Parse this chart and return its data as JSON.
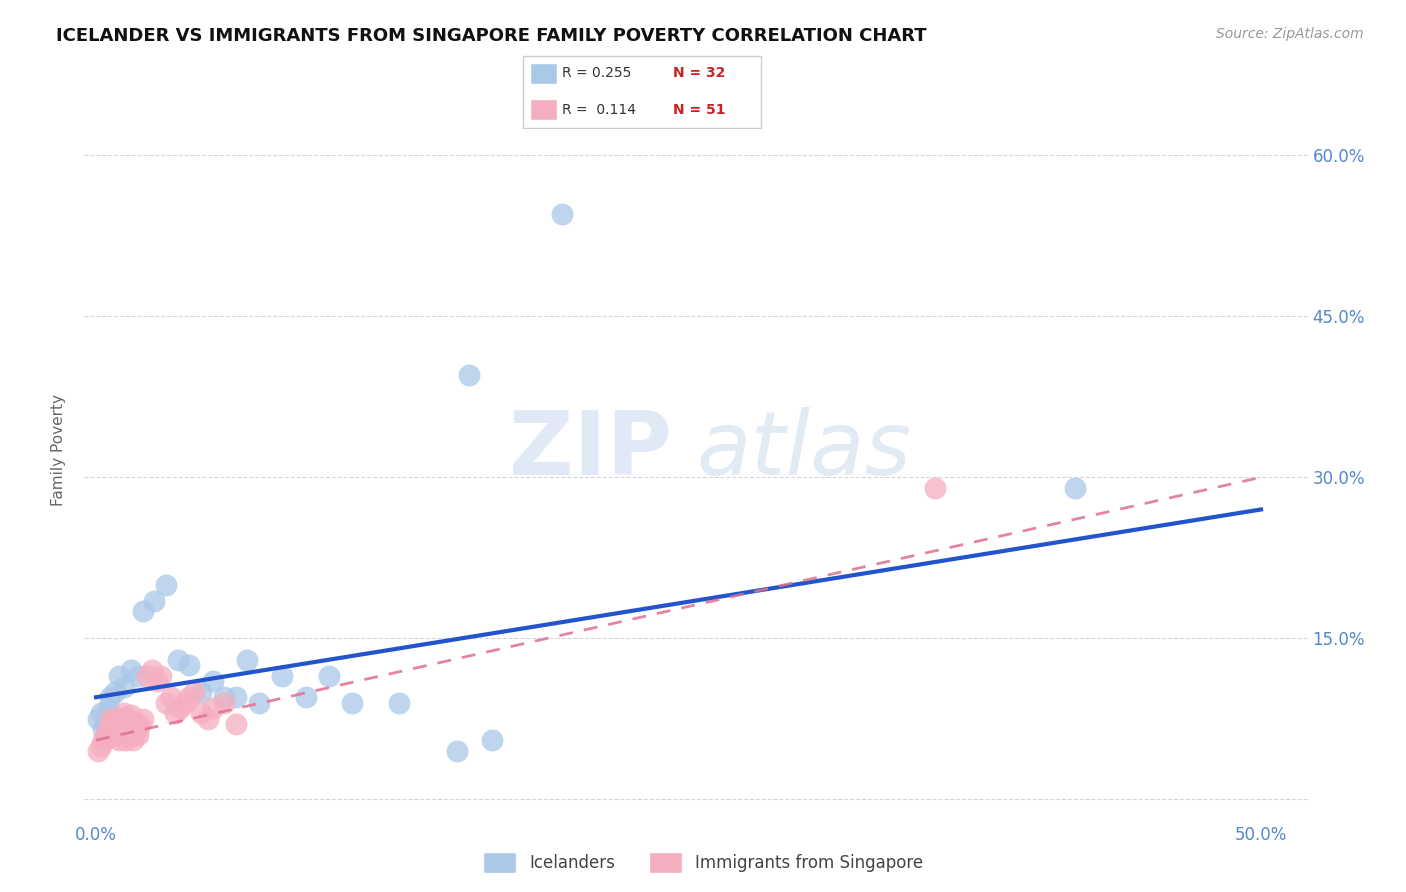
{
  "title": "ICELANDER VS IMMIGRANTS FROM SINGAPORE FAMILY POVERTY CORRELATION CHART",
  "source": "Source: ZipAtlas.com",
  "ylabel": "Family Poverty",
  "xlim": [
    -0.005,
    0.52
  ],
  "ylim": [
    -0.02,
    0.67
  ],
  "xticks": [
    0.0,
    0.1,
    0.2,
    0.3,
    0.4,
    0.5
  ],
  "yticks": [
    0.0,
    0.15,
    0.3,
    0.45,
    0.6
  ],
  "xticklabels": [
    "0.0%",
    "",
    "",
    "",
    "",
    "50.0%"
  ],
  "yticklabels_right": [
    "",
    "15.0%",
    "30.0%",
    "45.0%",
    "60.0%"
  ],
  "color_blue": "#aac8e8",
  "color_pink": "#f5aec0",
  "color_blue_line": "#2255cc",
  "color_pink_line": "#e07090",
  "color_tick_label": "#5588cc",
  "icelanders_x": [
    0.001,
    0.002,
    0.003,
    0.004,
    0.005,
    0.006,
    0.008,
    0.01,
    0.012,
    0.015,
    0.018,
    0.02,
    0.025,
    0.03,
    0.035,
    0.04,
    0.045,
    0.05,
    0.055,
    0.06,
    0.065,
    0.07,
    0.08,
    0.09,
    0.1,
    0.11,
    0.13,
    0.155,
    0.17,
    0.2,
    0.42,
    0.16
  ],
  "icelanders_y": [
    0.075,
    0.08,
    0.065,
    0.07,
    0.085,
    0.095,
    0.1,
    0.115,
    0.105,
    0.12,
    0.115,
    0.175,
    0.185,
    0.2,
    0.13,
    0.125,
    0.1,
    0.11,
    0.095,
    0.095,
    0.13,
    0.09,
    0.115,
    0.095,
    0.115,
    0.09,
    0.09,
    0.045,
    0.055,
    0.545,
    0.29,
    0.395
  ],
  "singapore_x": [
    0.001,
    0.002,
    0.003,
    0.004,
    0.005,
    0.005,
    0.006,
    0.006,
    0.007,
    0.007,
    0.008,
    0.008,
    0.009,
    0.009,
    0.01,
    0.01,
    0.011,
    0.011,
    0.012,
    0.012,
    0.013,
    0.013,
    0.014,
    0.014,
    0.015,
    0.015,
    0.016,
    0.016,
    0.017,
    0.017,
    0.018,
    0.018,
    0.019,
    0.02,
    0.022,
    0.024,
    0.026,
    0.028,
    0.03,
    0.032,
    0.034,
    0.036,
    0.038,
    0.04,
    0.042,
    0.045,
    0.048,
    0.05,
    0.055,
    0.06,
    0.36
  ],
  "singapore_y": [
    0.045,
    0.05,
    0.055,
    0.058,
    0.06,
    0.065,
    0.07,
    0.075,
    0.058,
    0.062,
    0.065,
    0.07,
    0.072,
    0.076,
    0.055,
    0.065,
    0.068,
    0.072,
    0.076,
    0.08,
    0.055,
    0.06,
    0.065,
    0.068,
    0.072,
    0.078,
    0.055,
    0.06,
    0.065,
    0.07,
    0.06,
    0.065,
    0.07,
    0.075,
    0.115,
    0.12,
    0.11,
    0.115,
    0.09,
    0.095,
    0.08,
    0.085,
    0.09,
    0.095,
    0.1,
    0.08,
    0.075,
    0.085,
    0.09,
    0.07,
    0.29
  ],
  "blue_line_x": [
    0.0,
    0.5
  ],
  "blue_line_y": [
    0.095,
    0.27
  ],
  "pink_line_x": [
    0.0,
    0.5
  ],
  "pink_line_y": [
    0.055,
    0.3
  ]
}
